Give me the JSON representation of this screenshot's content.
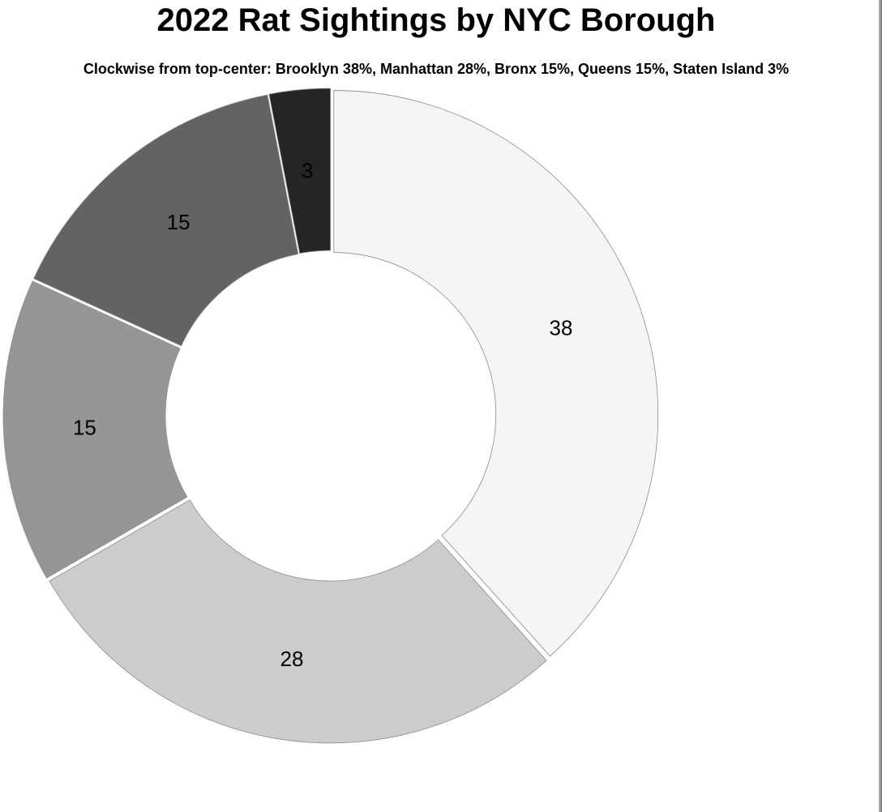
{
  "chart_data": {
    "type": "pie",
    "title": "2022 Rat Sightings by NYC Borough",
    "subtitle": "Clockwise from top-center: Brooklyn 38%, Manhattan 28%, Bronx 15%, Queens 15%, Staten Island 3%",
    "categories": [
      "Brooklyn",
      "Manhattan",
      "Bronx",
      "Queens",
      "Staten Island"
    ],
    "values": [
      38,
      28,
      15,
      15,
      3
    ],
    "colors": [
      "#f5f5f5",
      "#cccccc",
      "#969696",
      "#636363",
      "#252525"
    ],
    "donut": true,
    "start": "top-center",
    "direction": "clockwise",
    "legend": "none"
  }
}
